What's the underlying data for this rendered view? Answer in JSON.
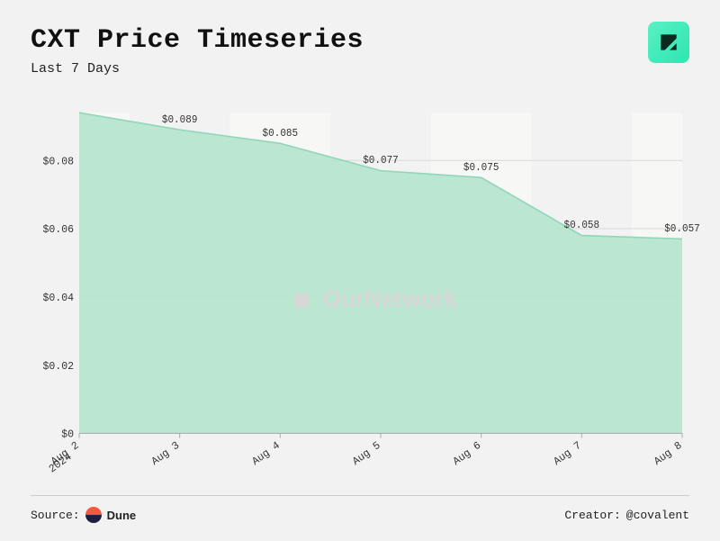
{
  "header": {
    "title": "CXT Price Timeseries",
    "subtitle": "Last 7 Days"
  },
  "chart": {
    "type": "area",
    "background_color": "#f2f2f2",
    "area_color": "#b7e5cf",
    "line_color": "#8fd6b8",
    "grid_color": "#d9d9d9",
    "stripe_color": "#fcfcfa",
    "label_fontsize": 11,
    "y": {
      "min": 0,
      "max": 0.094,
      "ticks": [
        {
          "v": 0,
          "label": "$0"
        },
        {
          "v": 0.02,
          "label": "$0.02"
        },
        {
          "v": 0.04,
          "label": "$0.04"
        },
        {
          "v": 0.06,
          "label": "$0.06"
        },
        {
          "v": 0.08,
          "label": "$0.08"
        }
      ]
    },
    "x": {
      "labels": [
        "Aug 2",
        "Aug 3",
        "Aug 4",
        "Aug 5",
        "Aug 6",
        "Aug 7",
        "Aug 8"
      ],
      "sublabel": "2024",
      "sublabel_index": 0
    },
    "points": [
      {
        "value": 0.094,
        "label": ""
      },
      {
        "value": 0.089,
        "label": "$0.089"
      },
      {
        "value": 0.085,
        "label": "$0.085"
      },
      {
        "value": 0.077,
        "label": "$0.077"
      },
      {
        "value": 0.075,
        "label": "$0.075"
      },
      {
        "value": 0.058,
        "label": "$0.058"
      },
      {
        "value": 0.057,
        "label": "$0.057"
      }
    ],
    "watermark": "OurNetwork"
  },
  "footer": {
    "source_label": "Source:",
    "source_name": "Dune",
    "creator_label": "Creator:",
    "creator_value": "@covalent"
  }
}
